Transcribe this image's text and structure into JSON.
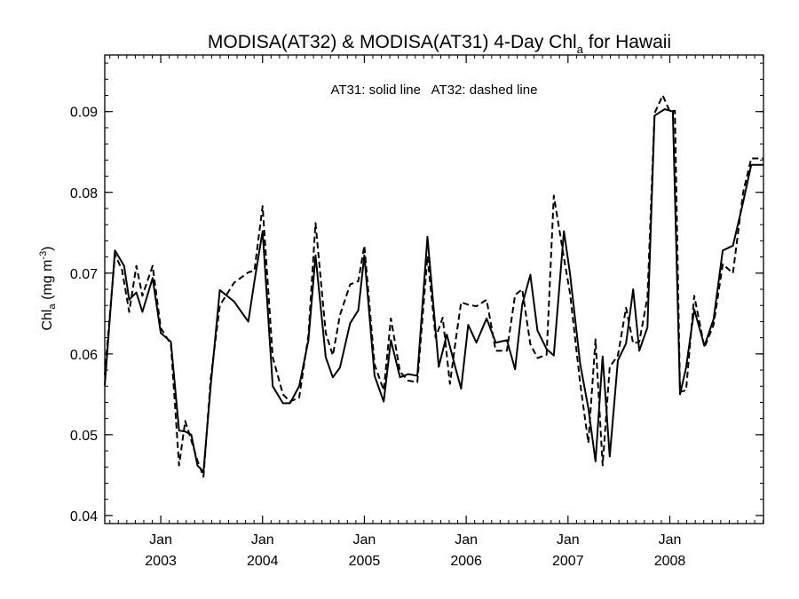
{
  "chart_data": {
    "type": "line",
    "title_main": "MODISA(AT32) & MODISA(AT31) 4-Day Chl",
    "title_sub": "a",
    "title_end": " for Hawaii",
    "ylabel_main": "Chl",
    "ylabel_sub": "a",
    "ylabel_unit": " (mg m",
    "ylabel_sup": "-3",
    "ylabel_close": ")",
    "annotation": "AT31: solid line   AT32: dashed line",
    "ylim": [
      0.039,
      0.097
    ],
    "xlim": [
      2002.45,
      2008.92
    ],
    "yticks": [
      0.04,
      0.05,
      0.06,
      0.07,
      0.08,
      0.09
    ],
    "ytick_labels": [
      "0.04",
      "0.05",
      "0.06",
      "0.07",
      "0.08",
      "0.09"
    ],
    "xticks": [
      {
        "x": 2003.0,
        "top": "Jan",
        "bottom": "2003"
      },
      {
        "x": 2004.0,
        "top": "Jan",
        "bottom": "2004"
      },
      {
        "x": 2005.0,
        "top": "Jan",
        "bottom": "2005"
      },
      {
        "x": 2006.0,
        "top": "Jan",
        "bottom": "2006"
      },
      {
        "x": 2007.0,
        "top": "Jan",
        "bottom": "2007"
      },
      {
        "x": 2008.0,
        "top": "Jan",
        "bottom": "2008"
      }
    ],
    "series": [
      {
        "name": "AT31",
        "style": "solid",
        "x": [
          2002.45,
          2002.55,
          2002.64,
          2002.69,
          2002.76,
          2002.82,
          2002.92,
          2003.0,
          2003.1,
          2003.18,
          2003.24,
          2003.3,
          2003.36,
          2003.42,
          2003.49,
          2003.58,
          2003.72,
          2003.86,
          2003.92,
          2004.0,
          2004.1,
          2004.2,
          2004.27,
          2004.36,
          2004.45,
          2004.52,
          2004.62,
          2004.69,
          2004.76,
          2004.86,
          2004.94,
          2005.0,
          2005.1,
          2005.19,
          2005.26,
          2005.35,
          2005.43,
          2005.52,
          2005.62,
          2005.73,
          2005.81,
          2005.9,
          2005.95,
          2006.02,
          2006.1,
          2006.2,
          2006.29,
          2006.4,
          2006.48,
          2006.55,
          2006.63,
          2006.7,
          2006.79,
          2006.86,
          2006.96,
          2007.02,
          2007.12,
          2007.2,
          2007.27,
          2007.34,
          2007.41,
          2007.49,
          2007.57,
          2007.64,
          2007.7,
          2007.78,
          2007.85,
          2007.95,
          2008.03,
          2008.1,
          2008.16,
          2008.24,
          2008.34,
          2008.43,
          2008.52,
          2008.62,
          2008.72,
          2008.8,
          2008.92
        ],
        "y": [
          0.0561,
          0.0728,
          0.0709,
          0.0667,
          0.0676,
          0.0652,
          0.0694,
          0.0626,
          0.0615,
          0.0505,
          0.0504,
          0.05,
          0.0462,
          0.0454,
          0.056,
          0.0679,
          0.0665,
          0.064,
          0.069,
          0.0752,
          0.056,
          0.0539,
          0.0539,
          0.056,
          0.0617,
          0.0722,
          0.0596,
          0.0571,
          0.0583,
          0.0638,
          0.0654,
          0.0722,
          0.0573,
          0.0541,
          0.0617,
          0.0571,
          0.0575,
          0.0573,
          0.0745,
          0.0584,
          0.0624,
          0.058,
          0.0557,
          0.0636,
          0.0614,
          0.0644,
          0.0614,
          0.0617,
          0.0581,
          0.0661,
          0.0698,
          0.0629,
          0.0606,
          0.0598,
          0.0752,
          0.0699,
          0.0587,
          0.0533,
          0.0467,
          0.0597,
          0.0473,
          0.0592,
          0.0613,
          0.068,
          0.0604,
          0.0633,
          0.0895,
          0.0903,
          0.09,
          0.055,
          0.0583,
          0.0655,
          0.061,
          0.0643,
          0.0728,
          0.0734,
          0.0788,
          0.0834,
          0.0834
        ]
      },
      {
        "name": "AT32",
        "style": "dashed",
        "x": [
          2002.45,
          2002.55,
          2002.62,
          2002.69,
          2002.76,
          2002.82,
          2002.92,
          2003.0,
          2003.1,
          2003.18,
          2003.24,
          2003.3,
          2003.36,
          2003.42,
          2003.49,
          2003.58,
          2003.72,
          2003.86,
          2003.92,
          2004.0,
          2004.1,
          2004.2,
          2004.27,
          2004.36,
          2004.45,
          2004.52,
          2004.62,
          2004.69,
          2004.76,
          2004.86,
          2004.94,
          2005.0,
          2005.1,
          2005.19,
          2005.26,
          2005.35,
          2005.43,
          2005.52,
          2005.62,
          2005.7,
          2005.77,
          2005.84,
          2005.9,
          2005.95,
          2006.02,
          2006.1,
          2006.2,
          2006.29,
          2006.4,
          2006.48,
          2006.55,
          2006.63,
          2006.7,
          2006.79,
          2006.86,
          2006.96,
          2007.02,
          2007.12,
          2007.2,
          2007.27,
          2007.34,
          2007.41,
          2007.49,
          2007.57,
          2007.64,
          2007.7,
          2007.78,
          2007.85,
          2007.93,
          2008.0,
          2008.05,
          2008.1,
          2008.16,
          2008.24,
          2008.34,
          2008.43,
          2008.52,
          2008.62,
          2008.72,
          2008.8,
          2008.92
        ],
        "y": [
          0.0574,
          0.0723,
          0.0704,
          0.0652,
          0.0709,
          0.0672,
          0.0709,
          0.0632,
          0.0612,
          0.0462,
          0.0517,
          0.0493,
          0.0468,
          0.0448,
          0.0569,
          0.066,
          0.0688,
          0.0701,
          0.0703,
          0.0783,
          0.0596,
          0.055,
          0.0541,
          0.0546,
          0.0623,
          0.0762,
          0.0626,
          0.0598,
          0.0648,
          0.0686,
          0.069,
          0.0734,
          0.0587,
          0.0555,
          0.0644,
          0.0578,
          0.0567,
          0.0565,
          0.0721,
          0.062,
          0.0645,
          0.0563,
          0.062,
          0.0664,
          0.0661,
          0.0659,
          0.0667,
          0.0604,
          0.0604,
          0.0673,
          0.068,
          0.0612,
          0.0595,
          0.0599,
          0.0796,
          0.0719,
          0.0675,
          0.0563,
          0.049,
          0.0618,
          0.0462,
          0.0584,
          0.0598,
          0.0657,
          0.0613,
          0.0615,
          0.067,
          0.0898,
          0.092,
          0.09,
          0.0901,
          0.0553,
          0.0555,
          0.0672,
          0.0608,
          0.0636,
          0.0711,
          0.07,
          0.08,
          0.0842,
          0.0842
        ]
      }
    ]
  }
}
